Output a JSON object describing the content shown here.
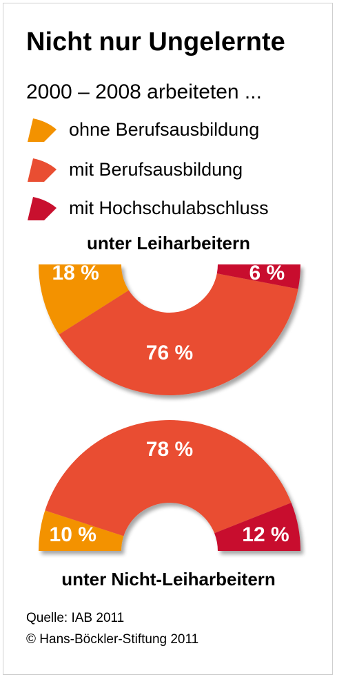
{
  "title": "Nicht nur Ungelernte",
  "subtitle": "2000 – 2008 arbeiteten ...",
  "colors": {
    "ohne": "#f39200",
    "mit": "#e94e32",
    "hochschule": "#c8102e"
  },
  "legend": [
    {
      "label": "ohne Berufsausbildung",
      "color": "#f39200"
    },
    {
      "label": "mit Berufsausbildung",
      "color": "#e94e32"
    },
    {
      "label": "mit Hochschulabschluss",
      "color": "#c8102e"
    }
  ],
  "chart_data": [
    {
      "type": "pie",
      "variant": "half-donut-lower",
      "title": "unter Leiharbeitern",
      "categories": [
        "ohne Berufsausbildung",
        "mit Berufsausbildung",
        "mit Hochschulabschluss"
      ],
      "values": [
        18,
        76,
        6
      ],
      "labels": [
        "18 %",
        "76 %",
        "6 %"
      ],
      "unit": "%"
    },
    {
      "type": "pie",
      "variant": "half-donut-upper",
      "title": "unter Nicht-Leiharbeitern",
      "categories": [
        "ohne Berufsausbildung",
        "mit Berufsausbildung",
        "mit Hochschulabschluss"
      ],
      "values": [
        10,
        78,
        12
      ],
      "labels": [
        "10 %",
        "78 %",
        "12 %"
      ],
      "unit": "%"
    }
  ],
  "source": {
    "quelle": "Quelle: IAB 2011",
    "copyright": "© Hans-Böckler-Stiftung 2011"
  }
}
